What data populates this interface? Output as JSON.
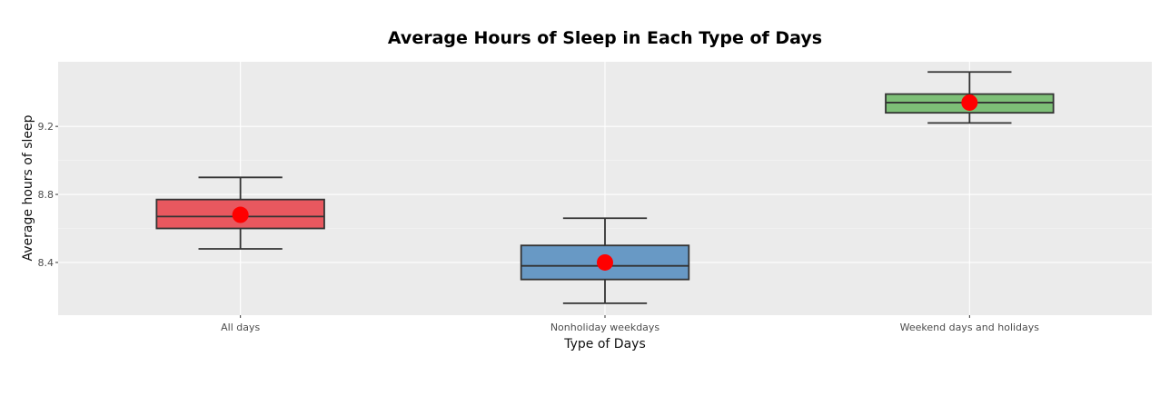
{
  "chart_data": {
    "type": "box",
    "title": "Average Hours of Sleep in Each Type of Days",
    "xlabel": "Type of Days",
    "ylabel": "Average hours of sleep",
    "categories": [
      "All days",
      "Nonholiday weekdays",
      "Weekend days and holidays"
    ],
    "yticks": [
      "8.4",
      "8.8",
      "9.2"
    ],
    "ytick_values": [
      8.4,
      8.8,
      9.2
    ],
    "ylim": [
      8.09,
      9.58
    ],
    "grid": true,
    "legend": "none",
    "boxes": [
      {
        "min": 8.48,
        "q1": 8.6,
        "median": 8.67,
        "q3": 8.77,
        "max": 8.9,
        "mean": 8.68,
        "color": "#E8585F"
      },
      {
        "min": 8.16,
        "q1": 8.3,
        "median": 8.38,
        "q3": 8.5,
        "max": 8.66,
        "mean": 8.4,
        "color": "#6899C5"
      },
      {
        "min": 9.22,
        "q1": 9.28,
        "median": 9.34,
        "q3": 9.39,
        "max": 9.52,
        "mean": 9.34,
        "color": "#7DBF77"
      }
    ],
    "mean_marker_color": "#FF0000",
    "panel_background": "#EBEBEB",
    "box_outline_color": "#333333"
  }
}
